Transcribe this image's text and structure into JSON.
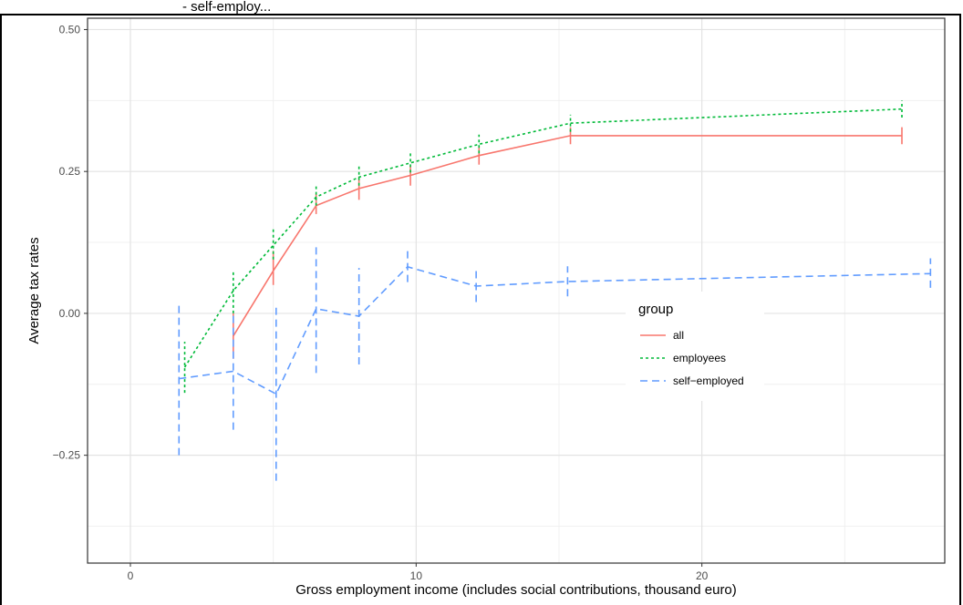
{
  "header_text": "- self-employ...",
  "chart_data": {
    "type": "line",
    "xlabel": "Gross employment income (includes social contributions, thousand euro)",
    "ylabel": "Average tax rates",
    "xlim": [
      -1.5,
      28.5
    ],
    "ylim": [
      -0.44,
      0.52
    ],
    "x_ticks": [
      0,
      10,
      20
    ],
    "x_tick_labels": [
      "0",
      "10",
      "20"
    ],
    "y_ticks": [
      -0.25,
      0.0,
      0.25,
      0.5
    ],
    "y_tick_labels": [
      "-0.25",
      "0.00",
      "0.25",
      "0.50"
    ],
    "grid": true,
    "legend_title": "group",
    "legend_position": "right-center",
    "series": [
      {
        "name": "all",
        "color": "#F8766D",
        "dash": "solid",
        "points": [
          {
            "x": 3.6,
            "y": -0.04,
            "lo": -0.08,
            "hi": 0.0
          },
          {
            "x": 5.0,
            "y": 0.075,
            "lo": 0.05,
            "hi": 0.11
          },
          {
            "x": 6.5,
            "y": 0.19,
            "lo": 0.175,
            "hi": 0.21
          },
          {
            "x": 8.0,
            "y": 0.22,
            "lo": 0.2,
            "hi": 0.24
          },
          {
            "x": 9.8,
            "y": 0.243,
            "lo": 0.225,
            "hi": 0.26
          },
          {
            "x": 12.2,
            "y": 0.278,
            "lo": 0.262,
            "hi": 0.295
          },
          {
            "x": 15.4,
            "y": 0.313,
            "lo": 0.298,
            "hi": 0.328
          },
          {
            "x": 27.0,
            "y": 0.313,
            "lo": 0.298,
            "hi": 0.328
          }
        ]
      },
      {
        "name": "employees",
        "color": "#00BA38",
        "dash": "dotted",
        "points": [
          {
            "x": 1.9,
            "y": -0.095,
            "lo": -0.14,
            "hi": -0.05
          },
          {
            "x": 3.6,
            "y": 0.04,
            "lo": 0.0,
            "hi": 0.077
          },
          {
            "x": 5.0,
            "y": 0.12,
            "lo": 0.095,
            "hi": 0.148
          },
          {
            "x": 6.5,
            "y": 0.205,
            "lo": 0.19,
            "hi": 0.225
          },
          {
            "x": 8.0,
            "y": 0.24,
            "lo": 0.225,
            "hi": 0.262
          },
          {
            "x": 9.8,
            "y": 0.265,
            "lo": 0.248,
            "hi": 0.282
          },
          {
            "x": 12.2,
            "y": 0.298,
            "lo": 0.282,
            "hi": 0.315
          },
          {
            "x": 15.4,
            "y": 0.335,
            "lo": 0.32,
            "hi": 0.35
          },
          {
            "x": 27.0,
            "y": 0.36,
            "lo": 0.345,
            "hi": 0.375
          }
        ]
      },
      {
        "name": "self-employed",
        "color": "#619CFF",
        "dash": "dashed",
        "points": [
          {
            "x": 1.7,
            "y": -0.115,
            "lo": -0.25,
            "hi": 0.02
          },
          {
            "x": 3.6,
            "y": -0.102,
            "lo": -0.205,
            "hi": 0.0
          },
          {
            "x": 5.1,
            "y": -0.142,
            "lo": -0.295,
            "hi": 0.01
          },
          {
            "x": 6.5,
            "y": 0.008,
            "lo": -0.105,
            "hi": 0.12
          },
          {
            "x": 8.0,
            "y": -0.005,
            "lo": -0.09,
            "hi": 0.08
          },
          {
            "x": 9.7,
            "y": 0.082,
            "lo": 0.055,
            "hi": 0.11
          },
          {
            "x": 12.1,
            "y": 0.048,
            "lo": 0.02,
            "hi": 0.077
          },
          {
            "x": 15.3,
            "y": 0.056,
            "lo": 0.03,
            "hi": 0.083
          },
          {
            "x": 28.0,
            "y": 0.07,
            "lo": 0.045,
            "hi": 0.097
          }
        ]
      }
    ]
  }
}
